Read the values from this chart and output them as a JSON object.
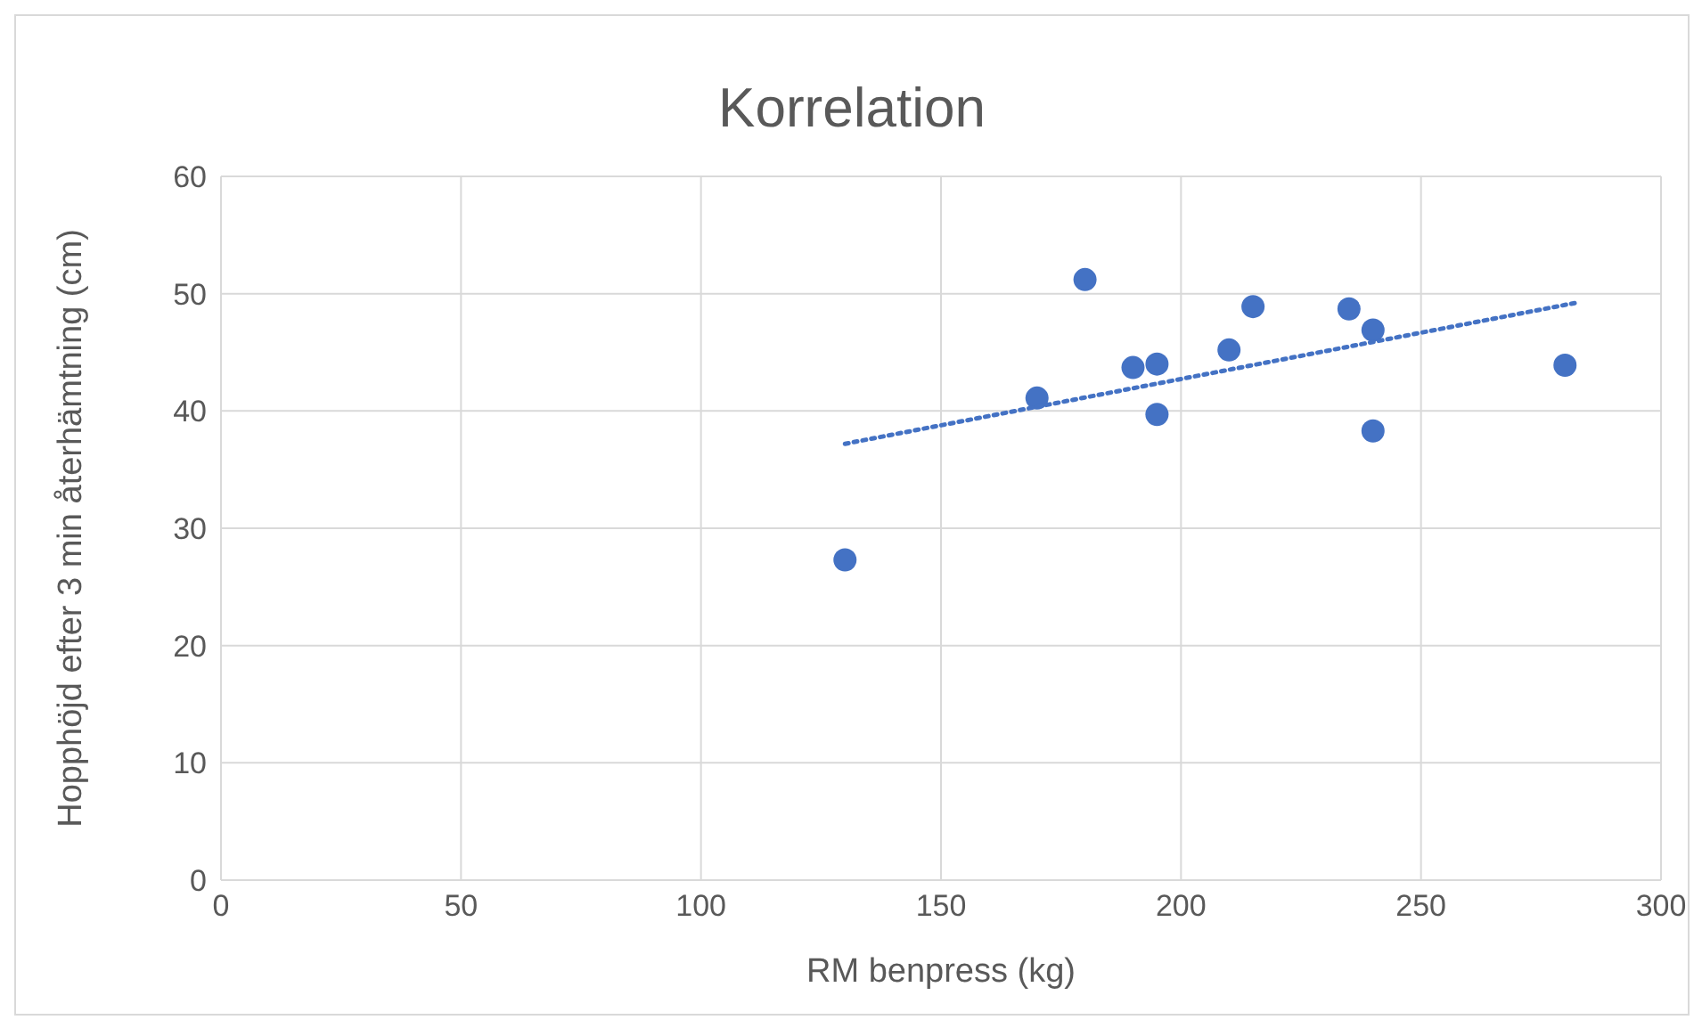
{
  "chart_data": {
    "type": "scatter",
    "title": "Korrelation",
    "xlabel": "RM benpress (kg)",
    "ylabel": "Hopphöjd efter 3 min återhämtning (cm)",
    "x": [
      130,
      170,
      180,
      190,
      195,
      195,
      210,
      215,
      235,
      240,
      240,
      280
    ],
    "series": [
      {
        "type": "scatter",
        "color": "#4472c4",
        "marker": "circle",
        "values": [
          27.3,
          41.1,
          51.2,
          43.7,
          44.0,
          39.7,
          45.2,
          48.9,
          48.7,
          46.9,
          38.3,
          43.9
        ]
      },
      {
        "type": "line",
        "color": "#4472c4",
        "line_style": "dotted",
        "marker": "none",
        "x": [
          130,
          282
        ],
        "values": [
          37.2,
          49.2
        ]
      }
    ],
    "xlim": [
      0,
      300
    ],
    "xticks": [
      0,
      50,
      100,
      150,
      200,
      250,
      300
    ],
    "ylim": [
      0,
      60
    ],
    "yticks": [
      0,
      10,
      20,
      30,
      40,
      50,
      60
    ],
    "grid": true
  }
}
